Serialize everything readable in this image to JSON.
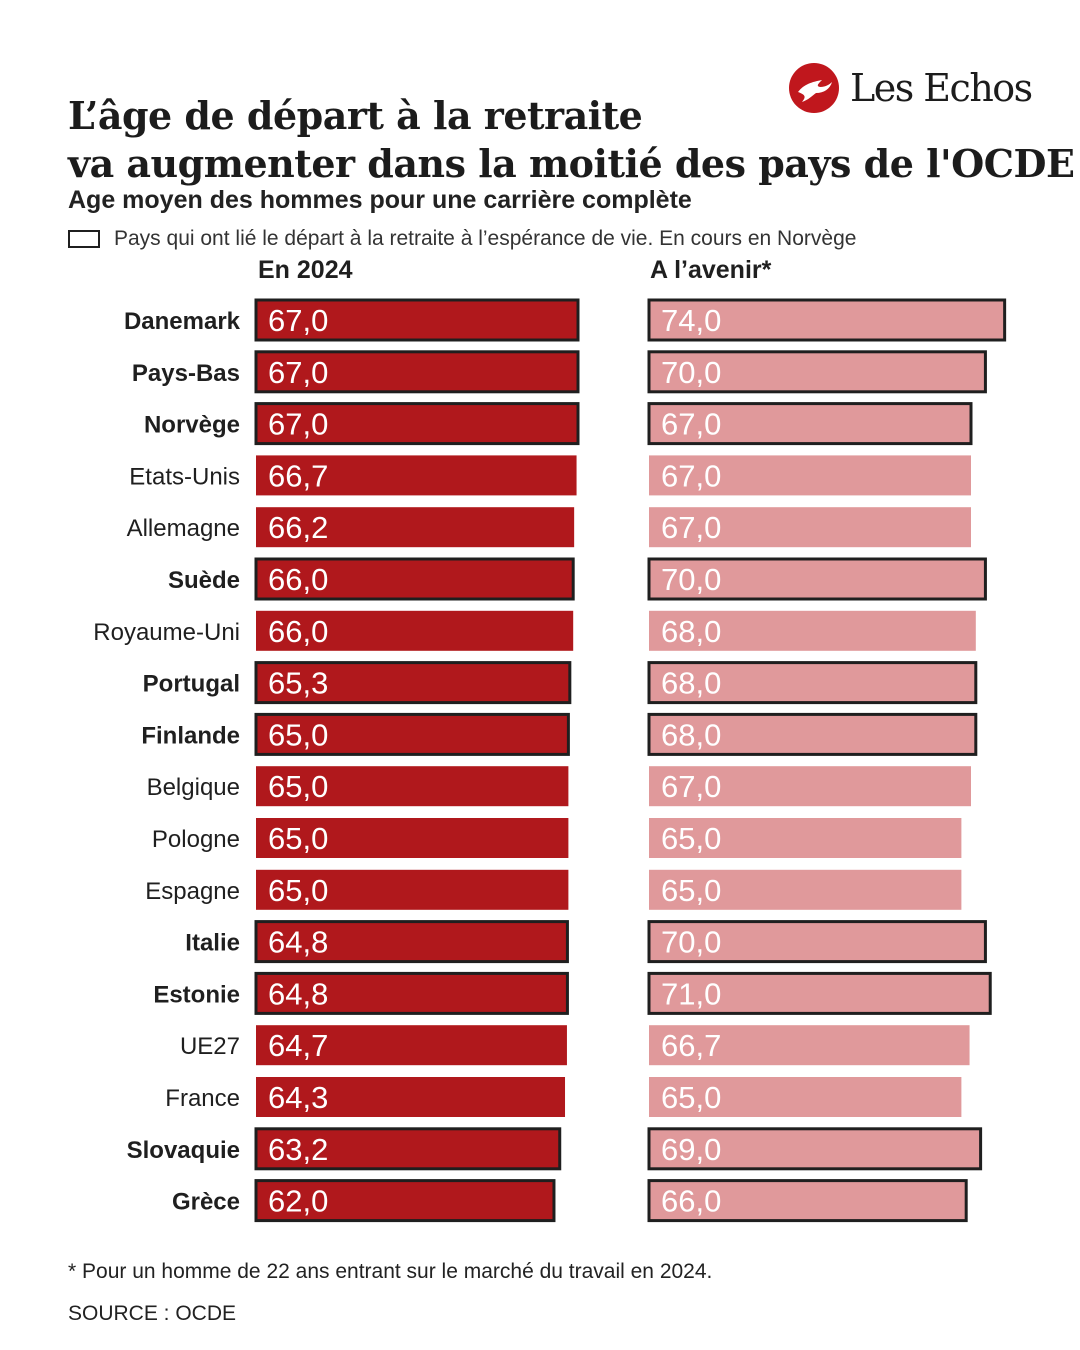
{
  "header": {
    "title_line1": "L’âge de départ à la retraite",
    "title_line2": "va augmenter dans la moitié des pays de l'OCDE",
    "subtitle": "Age moyen des hommes pour une carrière complète",
    "legend_text": "Pays qui ont lié le départ à la retraite à l’espérance de vie. En cours en Norvège"
  },
  "logo": {
    "text": "Les Echos",
    "icon": "les-echos-bird-logo",
    "color": "#c0171d"
  },
  "columns": {
    "left_title": "En 2024",
    "right_title": "A l’avenir*"
  },
  "colors": {
    "bar_2024": "#b0181c",
    "bar_future": "#e0999b",
    "outline": "#1f1f1f",
    "label_2024": "#ffffff",
    "label_future": "#ffffff"
  },
  "chart_data": {
    "type": "bar",
    "orientation": "horizontal",
    "categories": [
      "Danemark",
      "Pays-Bas",
      "Norvège",
      "Etats-Unis",
      "Allemagne",
      "Suède",
      "Royaume-Uni",
      "Portugal",
      "Finlande",
      "Belgique",
      "Pologne",
      "Espagne",
      "Italie",
      "Estonie",
      "UE27",
      "France",
      "Slovaquie",
      "Grèce"
    ],
    "linked_to_life_expectancy": [
      true,
      true,
      true,
      false,
      false,
      true,
      false,
      true,
      true,
      false,
      false,
      false,
      true,
      true,
      false,
      false,
      true,
      true
    ],
    "series": [
      {
        "name": "En 2024",
        "values": [
          67.0,
          67.0,
          67.0,
          66.7,
          66.2,
          66.0,
          66.0,
          65.3,
          65.0,
          65.0,
          65.0,
          65.0,
          64.8,
          64.8,
          64.7,
          64.3,
          63.2,
          62.0
        ],
        "labels": [
          "67,0",
          "67,0",
          "67,0",
          "66,7",
          "66,2",
          "66,0",
          "66,0",
          "65,3",
          "65,0",
          "65,0",
          "65,0",
          "65,0",
          "64,8",
          "64,8",
          "64,7",
          "64,3",
          "63,2",
          "62,0"
        ]
      },
      {
        "name": "A l’avenir*",
        "values": [
          74.0,
          70.0,
          67.0,
          67.0,
          67.0,
          70.0,
          68.0,
          68.0,
          68.0,
          67.0,
          65.0,
          65.0,
          70.0,
          71.0,
          66.7,
          65.0,
          69.0,
          66.0
        ],
        "labels": [
          "74,0",
          "70,0",
          "67,0",
          "67,0",
          "67,0",
          "70,0",
          "68,0",
          "68,0",
          "68,0",
          "67,0",
          "65,0",
          "65,0",
          "70,0",
          "71,0",
          "66,7",
          "65,0",
          "69,0",
          "66,0"
        ]
      }
    ],
    "xlim": [
      0,
      75
    ],
    "grid": false,
    "legend": "top-left"
  },
  "footer": {
    "footnote": "* Pour un homme de 22 ans entrant sur le marché du travail en 2024.",
    "source": "SOURCE : OCDE"
  }
}
